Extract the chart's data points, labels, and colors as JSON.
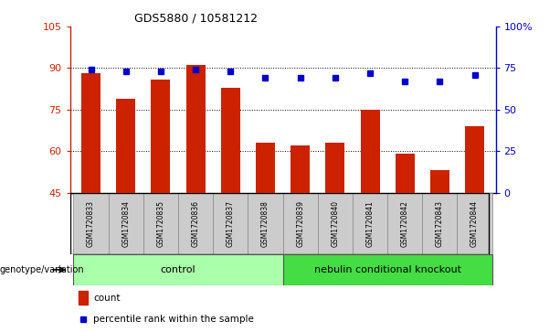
{
  "title": "GDS5880 / 10581212",
  "samples": [
    "GSM1720833",
    "GSM1720834",
    "GSM1720835",
    "GSM1720836",
    "GSM1720837",
    "GSM1720838",
    "GSM1720839",
    "GSM1720840",
    "GSM1720841",
    "GSM1720842",
    "GSM1720843",
    "GSM1720844"
  ],
  "counts": [
    88,
    79,
    86,
    91,
    83,
    63,
    62,
    63,
    75,
    59,
    53,
    69
  ],
  "percentiles": [
    74,
    73,
    73,
    74,
    73,
    69,
    69,
    69,
    72,
    67,
    67,
    71
  ],
  "ylim_left": [
    45,
    105
  ],
  "ylim_right": [
    0,
    100
  ],
  "yticks_left": [
    45,
    60,
    75,
    90,
    105
  ],
  "yticks_right": [
    0,
    25,
    50,
    75,
    100
  ],
  "ytick_labels_right": [
    "0",
    "25",
    "50",
    "75",
    "100%"
  ],
  "bar_color": "#cc2200",
  "dot_color": "#0000cc",
  "grid_color": "#000000",
  "ctrl_n": 6,
  "ko_n": 6,
  "control_label": "control",
  "knockout_label": "nebulin conditional knockout",
  "control_color": "#aaffaa",
  "knockout_color": "#44dd44",
  "sample_box_color": "#cccccc",
  "legend_count_label": "count",
  "legend_pct_label": "percentile rank within the sample",
  "genotype_label": "genotype/variation",
  "figsize": [
    6.13,
    3.63
  ],
  "dpi": 100
}
